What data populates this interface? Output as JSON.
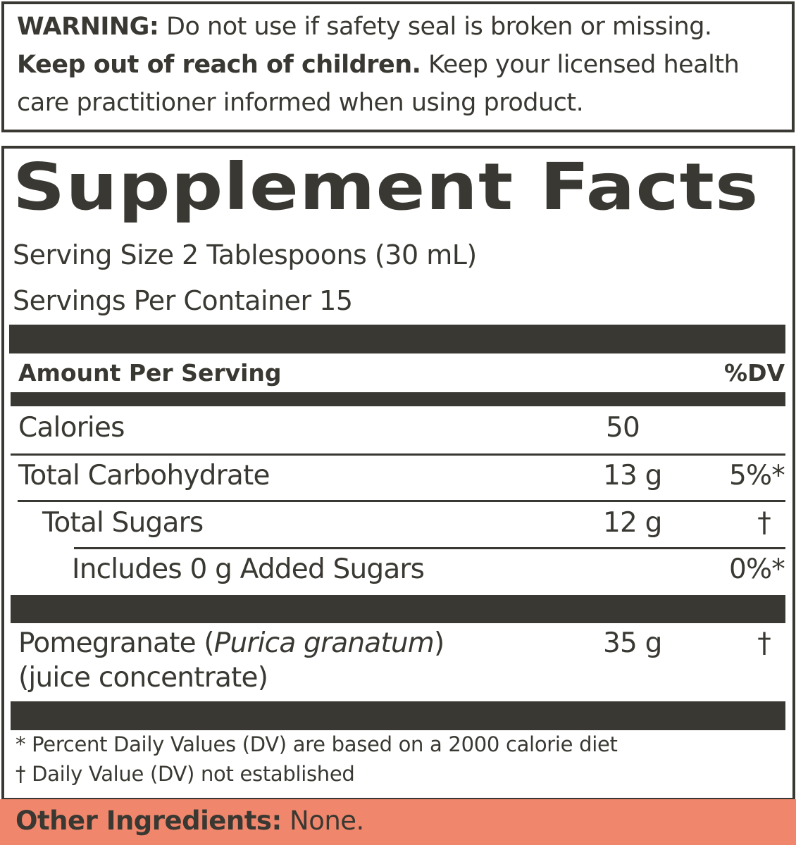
{
  "warning": {
    "label": "WARNING:",
    "text": " Do not use if safety seal is broken or missing.",
    "keep_out_label": "Keep out of reach of children.",
    "keep_out_text": " Keep your licensed health",
    "line3": "care practitioner informed when using product."
  },
  "facts": {
    "title": "Supplement Facts",
    "serving_size": "Serving Size 2 Tablespoons (30 mL)",
    "servings_per_container": "Servings Per Container 15",
    "header": {
      "amount": "Amount Per Serving",
      "dv": "%DV"
    },
    "rows": [
      {
        "name": "Calories",
        "amount": "50",
        "dv": ""
      },
      {
        "name": "Total Carbohydrate",
        "amount": "13 g",
        "dv": "5%*"
      },
      {
        "name": "Total Sugars",
        "amount": "12 g",
        "dv": "†"
      },
      {
        "name": "Includes 0 g Added Sugars",
        "amount": "",
        "dv": "0%*"
      }
    ],
    "pomegranate": {
      "name": "Pomegranate (",
      "latin": "Purica granatum",
      "close": ")",
      "line2": "(juice concentrate)",
      "amount": "35 g",
      "dv": "†"
    },
    "footnotes": [
      "* Percent Daily Values (DV) are based on a 2000 calorie diet",
      "† Daily Value (DV) not established"
    ]
  },
  "other_ingredients": {
    "label": "Other Ingredients:",
    "value": " None."
  },
  "colors": {
    "ink": "#3a3832",
    "accent": "#f0876c"
  }
}
